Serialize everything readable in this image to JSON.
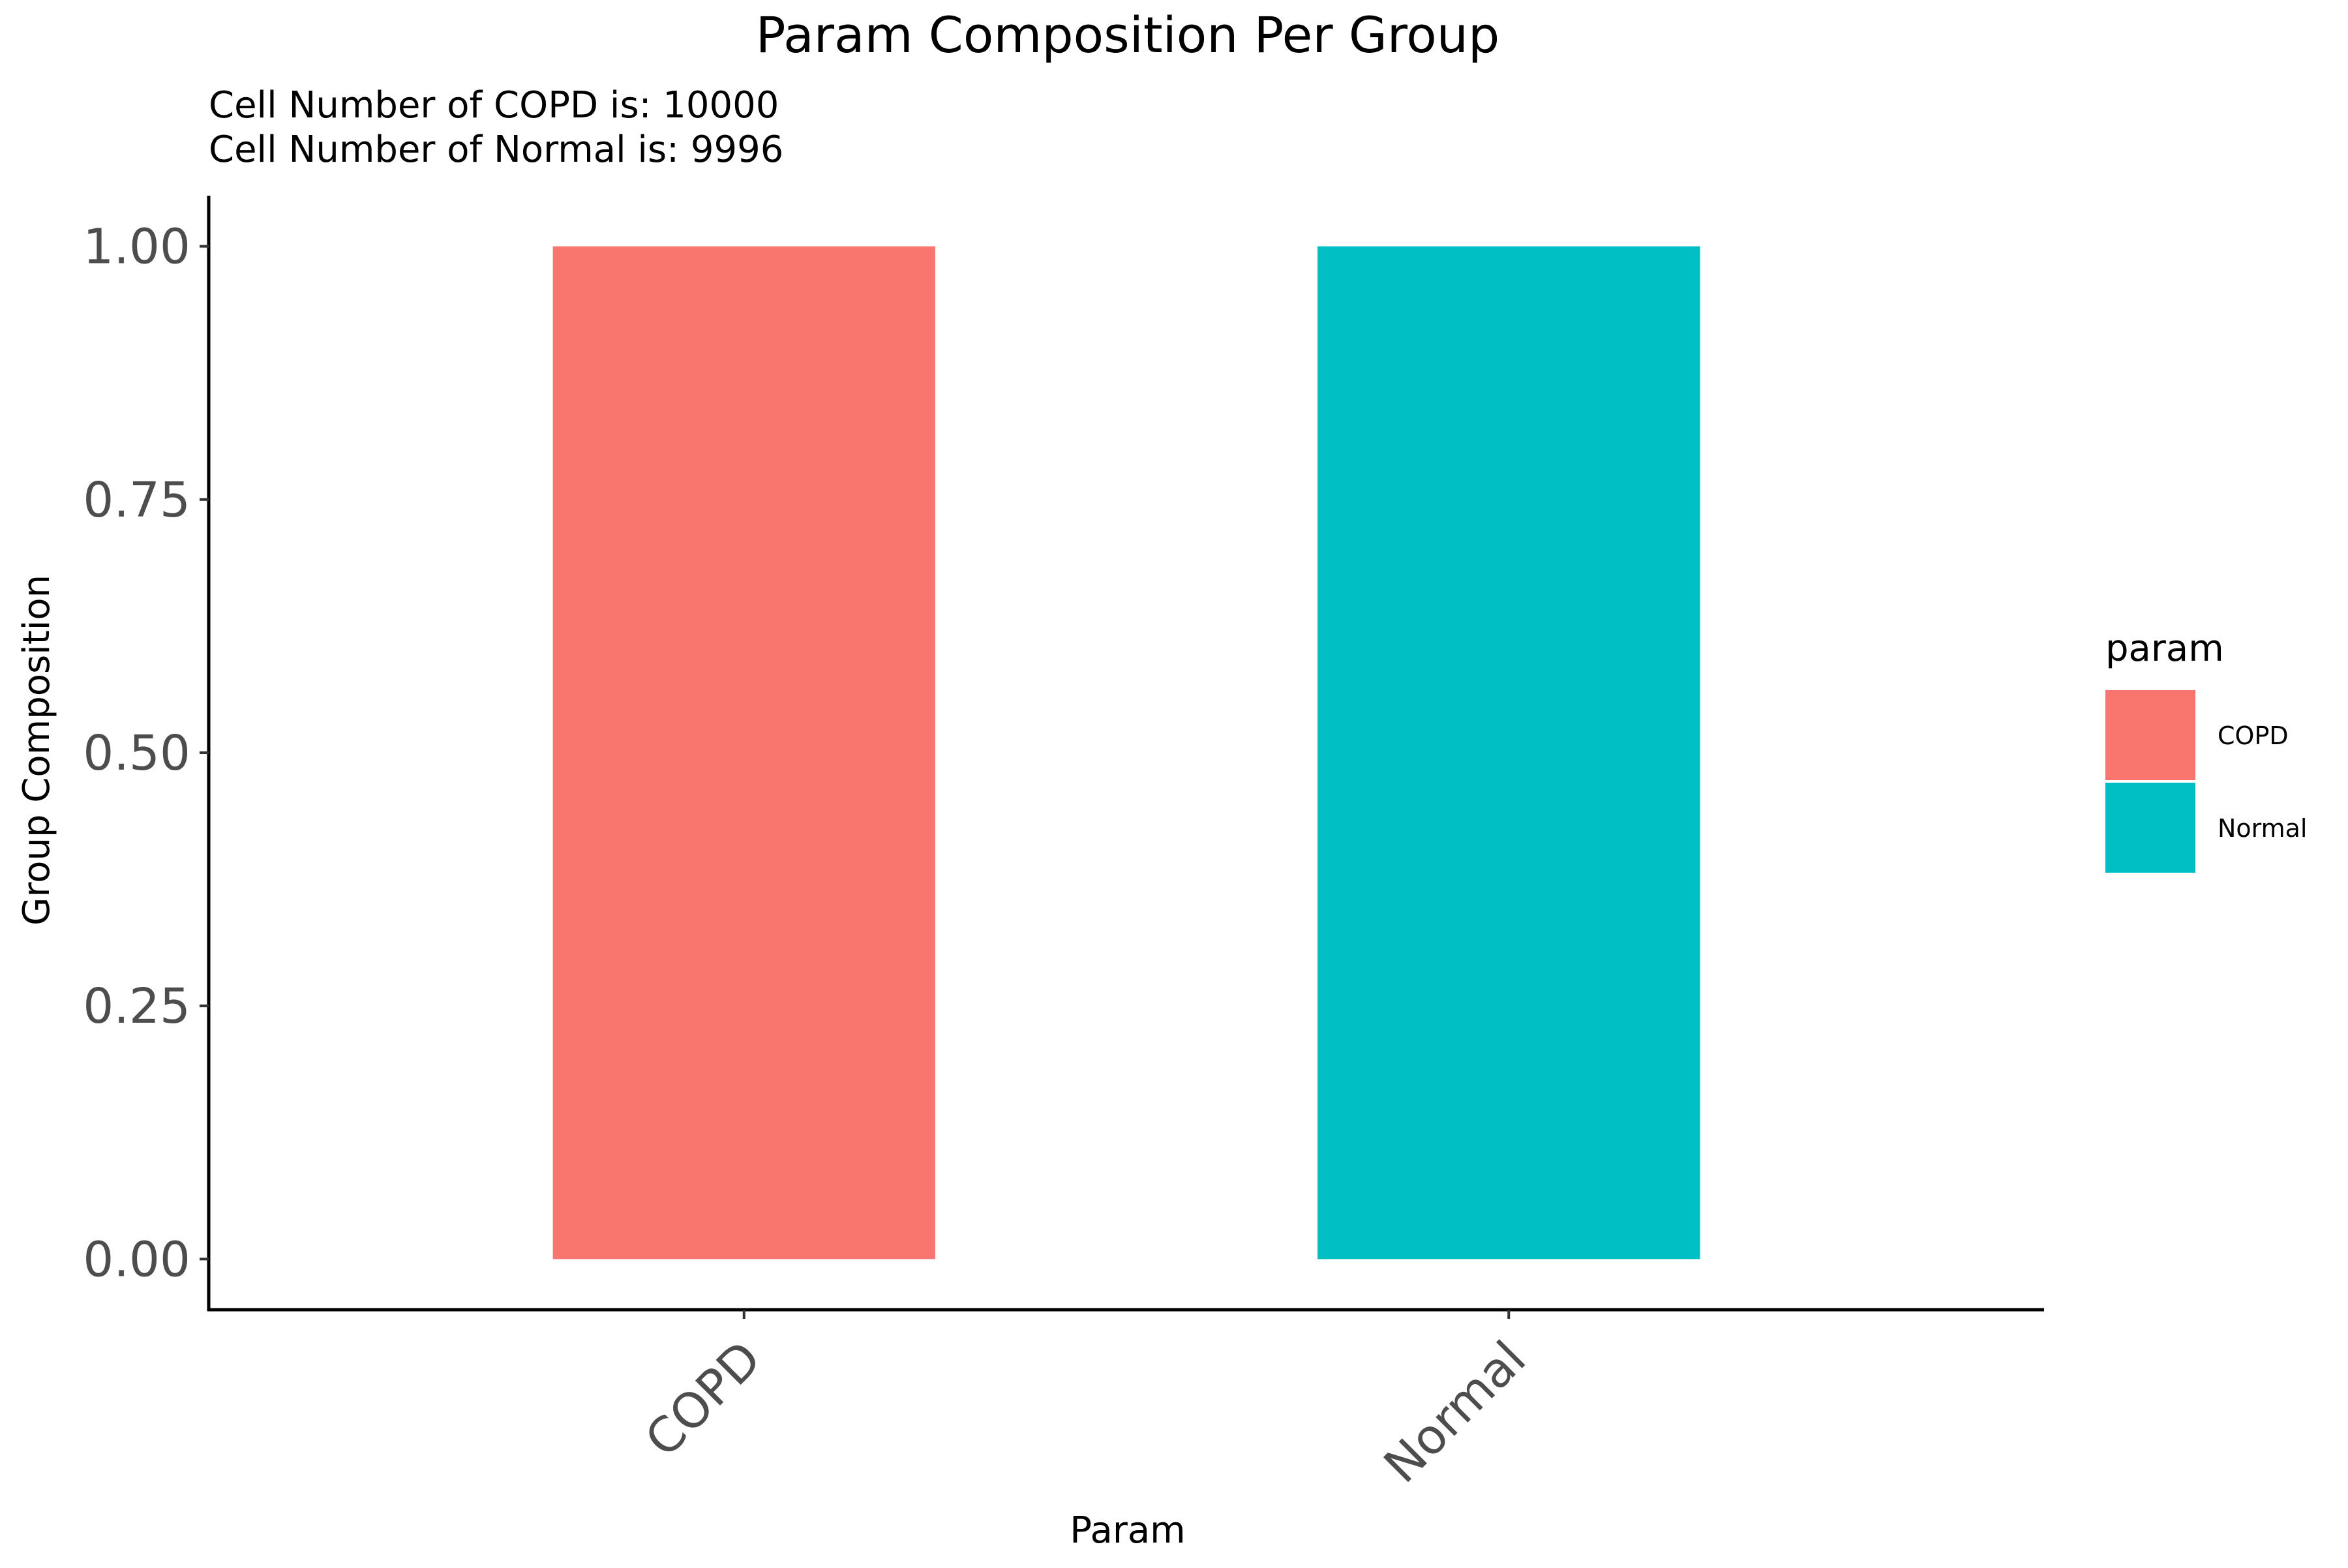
{
  "chart_data": {
    "type": "bar",
    "title": "Param Composition Per Group",
    "subtitle_lines": [
      "Cell Number of COPD is: 10000",
      "Cell Number of Normal is: 9996"
    ],
    "xlabel": "Param",
    "ylabel": "Group Composition",
    "categories": [
      "COPD",
      "Normal"
    ],
    "values": [
      1.0,
      1.0
    ],
    "colors": [
      "#F8766D",
      "#00BFC4"
    ],
    "ylim": [
      -0.05,
      1.05
    ],
    "yticks": [
      0.0,
      0.25,
      0.5,
      0.75,
      1.0
    ],
    "ytick_labels": [
      "0.00",
      "0.25",
      "0.50",
      "0.75",
      "1.00"
    ],
    "grid": false,
    "legend": {
      "title": "param",
      "position": "right",
      "entries": [
        {
          "label": "COPD",
          "color": "#F8766D"
        },
        {
          "label": "Normal",
          "color": "#00BFC4"
        }
      ]
    },
    "text_color": "#4D4D4D",
    "axis_color": "#000000"
  }
}
